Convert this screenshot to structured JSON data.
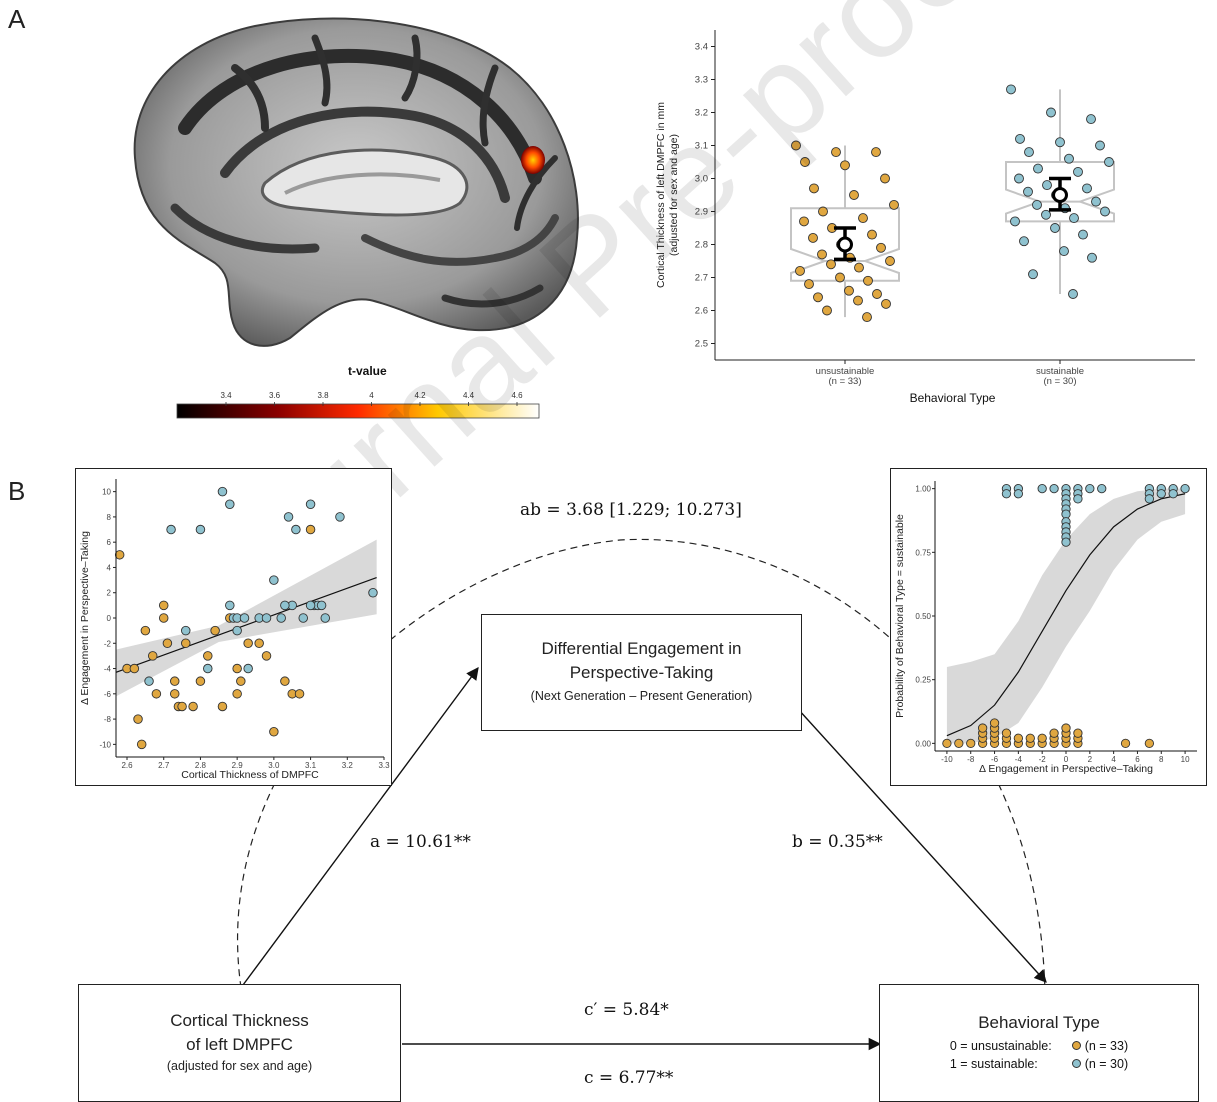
{
  "panel_labels": {
    "a": "A",
    "b": "B"
  },
  "colorbar": {
    "label": "t-value",
    "ticks": [
      "3.4",
      "3.6",
      "3.8",
      "4",
      "4.2",
      "4.4",
      "4.6"
    ],
    "colors": {
      "low": "#000000",
      "mid1": "#8b0000",
      "mid2": "#ff2a00",
      "mid3": "#ffc800",
      "high": "#ffffff"
    }
  },
  "colors": {
    "unsustainable": "#e0a740",
    "sustainable": "#8fc2cf",
    "band": "#d9d9d9",
    "box_outline": "#c4c4c4"
  },
  "mediation": {
    "mediator": {
      "title": "Differential Engagement in Perspective-Taking",
      "subtitle": "(Next Generation – Present Generation)"
    },
    "predictor": {
      "line1": "Cortical Thickness",
      "line2": "of left DMPFC",
      "note": "(adjusted for sex and age)"
    },
    "outcome": {
      "title": "Behavioral Type",
      "row1_code": "0 = unsustainable:",
      "row1_n": "(n = 33)",
      "row2_code": "1 = sustainable:",
      "row2_n": "(n = 30)"
    },
    "path_ab": "ab = 3.68 [1.229; 10.273]",
    "path_a": "a = 10.61**",
    "path_b": "b = 0.35**",
    "path_cprime": "c′ = 5.84*",
    "path_c": "c = 6.77**"
  },
  "watermark": "Journal Pre-proof",
  "chart_data": [
    {
      "type": "scatter",
      "subtype": "box-with-points",
      "title": "",
      "xlabel": "Behavioral Type",
      "ylabel": "Cortical Thickness of left DMPFC in mm (adjusted for sex and age)",
      "ylabel_line1": "Cortical Thickness of left DMPFC in mm",
      "ylabel_line2": "(adjusted for sex and age)",
      "ylim": [
        2.45,
        3.45
      ],
      "yticks": [
        "2.5",
        "2.6",
        "2.7",
        "2.8",
        "2.9",
        "3.0",
        "3.1",
        "3.2",
        "3.3",
        "3.4"
      ],
      "categories": [
        "unsustainable",
        "sustainable"
      ],
      "category_n": [
        "(n = 33)",
        "(n = 30)"
      ],
      "groups": [
        {
          "category": "unsustainable",
          "box": {
            "q1": 2.69,
            "median": 2.75,
            "q3": 2.91,
            "min": 2.58,
            "max": 3.1
          },
          "mean": 2.8,
          "ci": [
            2.755,
            2.85
          ],
          "points": [
            3.1,
            3.08,
            3.08,
            3.05,
            3.04,
            3.0,
            2.97,
            2.95,
            2.92,
            2.9,
            2.88,
            2.87,
            2.85,
            2.83,
            2.82,
            2.8,
            2.79,
            2.77,
            2.76,
            2.75,
            2.74,
            2.73,
            2.72,
            2.7,
            2.69,
            2.68,
            2.66,
            2.65,
            2.64,
            2.63,
            2.62,
            2.6,
            2.58
          ]
        },
        {
          "category": "sustainable",
          "box": {
            "q1": 2.87,
            "median": 2.93,
            "q3": 3.05,
            "min": 2.65,
            "max": 3.27
          },
          "mean": 2.95,
          "ci": [
            2.905,
            3.0
          ],
          "points": [
            3.27,
            3.2,
            3.18,
            3.12,
            3.11,
            3.1,
            3.08,
            3.06,
            3.05,
            3.03,
            3.02,
            3.0,
            2.98,
            2.97,
            2.96,
            2.95,
            2.93,
            2.92,
            2.91,
            2.9,
            2.89,
            2.88,
            2.87,
            2.85,
            2.83,
            2.81,
            2.78,
            2.76,
            2.71,
            2.65
          ]
        }
      ]
    },
    {
      "type": "scatter",
      "title": "",
      "xlabel": "Cortical Thickness of DMPFC",
      "ylabel": "Δ Engagement in Perspective–Taking",
      "xlim": [
        2.57,
        3.3
      ],
      "ylim": [
        -11,
        11
      ],
      "xticks": [
        "2.6",
        "2.7",
        "2.8",
        "2.9",
        "3.0",
        "3.1",
        "3.2",
        "3.3"
      ],
      "yticks": [
        "-10",
        "-8",
        "-6",
        "-4",
        "-2",
        "0",
        "2",
        "4",
        "6",
        "8",
        "10"
      ],
      "fit": {
        "x": [
          2.57,
          3.28
        ],
        "y": [
          -4.3,
          3.2
        ]
      },
      "series": [
        {
          "name": "unsustainable",
          "points": [
            [
              2.58,
              5
            ],
            [
              2.6,
              -4
            ],
            [
              2.62,
              -4
            ],
            [
              2.64,
              -10
            ],
            [
              2.63,
              -8
            ],
            [
              2.65,
              -1
            ],
            [
              2.67,
              -3
            ],
            [
              2.68,
              -6
            ],
            [
              2.7,
              1
            ],
            [
              2.7,
              0
            ],
            [
              2.71,
              -2
            ],
            [
              2.73,
              -5
            ],
            [
              2.73,
              -6
            ],
            [
              2.74,
              -7
            ],
            [
              2.75,
              -7
            ],
            [
              2.76,
              -2
            ],
            [
              2.78,
              -7
            ],
            [
              2.8,
              -5
            ],
            [
              2.82,
              -3
            ],
            [
              2.84,
              -1
            ],
            [
              2.86,
              -7
            ],
            [
              2.88,
              0
            ],
            [
              2.9,
              -4
            ],
            [
              2.91,
              -5
            ],
            [
              2.93,
              -2
            ],
            [
              2.96,
              -2
            ],
            [
              2.98,
              -3
            ],
            [
              3.0,
              -9
            ],
            [
              3.03,
              -5
            ],
            [
              3.05,
              -6
            ],
            [
              3.07,
              -6
            ],
            [
              3.1,
              7
            ],
            [
              2.9,
              -6
            ]
          ]
        },
        {
          "name": "sustainable",
          "points": [
            [
              2.66,
              -5
            ],
            [
              2.72,
              7
            ],
            [
              2.76,
              -1
            ],
            [
              2.8,
              7
            ],
            [
              2.82,
              -4
            ],
            [
              2.86,
              10
            ],
            [
              2.88,
              9
            ],
            [
              2.89,
              0
            ],
            [
              2.9,
              0
            ],
            [
              2.92,
              0
            ],
            [
              2.88,
              1
            ],
            [
              2.9,
              -1
            ],
            [
              2.93,
              -4
            ],
            [
              2.96,
              0
            ],
            [
              2.98,
              0
            ],
            [
              3.0,
              3
            ],
            [
              3.02,
              0
            ],
            [
              3.04,
              8
            ],
            [
              3.05,
              1
            ],
            [
              3.06,
              7
            ],
            [
              3.08,
              0
            ],
            [
              3.1,
              9
            ],
            [
              3.11,
              1
            ],
            [
              3.12,
              1
            ],
            [
              3.13,
              1
            ],
            [
              3.14,
              0
            ],
            [
              3.18,
              8
            ],
            [
              3.27,
              2
            ],
            [
              3.03,
              1
            ],
            [
              3.1,
              1
            ]
          ]
        }
      ]
    },
    {
      "type": "scatter",
      "subtype": "logistic",
      "title": "",
      "xlabel": "Δ Engagement in Perspective–Taking",
      "ylabel": "Probability of Behavioral Type = sustainable",
      "xlim": [
        -11,
        11
      ],
      "ylim": [
        -0.03,
        1.03
      ],
      "xticks": [
        "-10",
        "-8",
        "-6",
        "-4",
        "-2",
        "0",
        "2",
        "4",
        "6",
        "8",
        "10"
      ],
      "yticks": [
        "0.00",
        "0.25",
        "0.50",
        "0.75",
        "1.00"
      ],
      "fit": {
        "x": [
          -10,
          -8,
          -6,
          -4,
          -2,
          0,
          2,
          4,
          6,
          8,
          10
        ],
        "y": [
          0.03,
          0.07,
          0.15,
          0.28,
          0.44,
          0.6,
          0.74,
          0.85,
          0.92,
          0.96,
          0.98
        ],
        "lower": [
          0.0,
          0.0,
          0.02,
          0.08,
          0.22,
          0.38,
          0.52,
          0.68,
          0.8,
          0.87,
          0.9
        ],
        "upper": [
          0.3,
          0.32,
          0.35,
          0.48,
          0.66,
          0.8,
          0.9,
          0.96,
          0.99,
          1.0,
          1.0
        ]
      },
      "series": [
        {
          "name": "sustainable",
          "points": [
            [
              -5,
              1
            ],
            [
              -5,
              0.98
            ],
            [
              -4,
              1
            ],
            [
              -4,
              0.98
            ],
            [
              -2,
              1
            ],
            [
              -1,
              1
            ],
            [
              0,
              1
            ],
            [
              0,
              0.98
            ],
            [
              0,
              0.96
            ],
            [
              0,
              0.94
            ],
            [
              0,
              0.92
            ],
            [
              0,
              0.9
            ],
            [
              0,
              0.87
            ],
            [
              0,
              0.85
            ],
            [
              0,
              0.83
            ],
            [
              0,
              0.81
            ],
            [
              0,
              0.79
            ],
            [
              1,
              1
            ],
            [
              1,
              0.98
            ],
            [
              2,
              1
            ],
            [
              3,
              1
            ],
            [
              7,
              1
            ],
            [
              7,
              0.98
            ],
            [
              7,
              0.96
            ],
            [
              8,
              1
            ],
            [
              8,
              0.98
            ],
            [
              9,
              1
            ],
            [
              9,
              0.98
            ],
            [
              10,
              1
            ],
            [
              1,
              0.96
            ]
          ]
        },
        {
          "name": "unsustainable",
          "points": [
            [
              -10,
              0
            ],
            [
              -9,
              0
            ],
            [
              -8,
              0
            ],
            [
              -7,
              0
            ],
            [
              -6,
              0
            ],
            [
              -6,
              0.02
            ],
            [
              -6,
              0.04
            ],
            [
              -6,
              0.06
            ],
            [
              -6,
              0.08
            ],
            [
              -5,
              0
            ],
            [
              -5,
              0.02
            ],
            [
              -5,
              0.04
            ],
            [
              -4,
              0
            ],
            [
              -4,
              0.02
            ],
            [
              -3,
              0
            ],
            [
              -3,
              0.02
            ],
            [
              -2,
              0
            ],
            [
              -2,
              0.02
            ],
            [
              -1,
              0
            ],
            [
              -1,
              0.02
            ],
            [
              -1,
              0.04
            ],
            [
              0,
              0
            ],
            [
              0,
              0.02
            ],
            [
              0,
              0.04
            ],
            [
              0,
              0.06
            ],
            [
              1,
              0
            ],
            [
              1,
              0.02
            ],
            [
              1,
              0.04
            ],
            [
              5,
              0
            ],
            [
              7,
              0
            ],
            [
              -7,
              0.02
            ],
            [
              -7,
              0.04
            ],
            [
              -7,
              0.06
            ]
          ]
        }
      ]
    }
  ]
}
